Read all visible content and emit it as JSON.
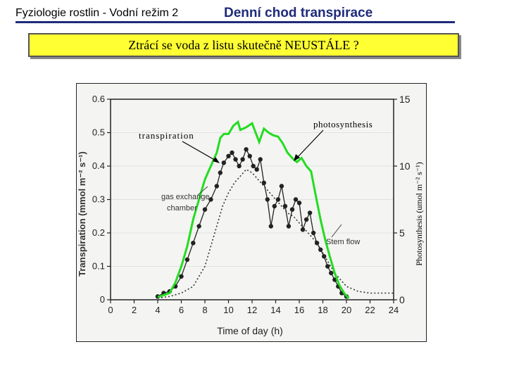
{
  "header": {
    "left_text": "Fyziologie rostlin  - Vodní režim 2",
    "title": "Denní chod transpirace"
  },
  "banner": {
    "text": "Ztrácí se voda z listu skutečně NEUSTÁLE ?"
  },
  "colors": {
    "accent_line": "#1f2a7a",
    "banner_bg": "#ffff33",
    "photosynthesis_curve": "#22dd22"
  },
  "chart_data": {
    "type": "line",
    "xlabel": "Time of day (h)",
    "ylabel": "Transpiration (mmol m⁻² s⁻¹)",
    "y2label": "Photosynthesis (umol m⁻² s⁻¹)",
    "xlim": [
      0,
      24
    ],
    "ylim": [
      0,
      0.6
    ],
    "y2lim": [
      0,
      15
    ],
    "x_ticks": [
      "0",
      "2",
      "4",
      "6",
      "8",
      "10",
      "12",
      "14",
      "16",
      "18",
      "20",
      "22",
      "24"
    ],
    "y_ticks": [
      "0",
      "0.1",
      "0.2",
      "0.3",
      "0.4",
      "0.5",
      "0.6"
    ],
    "y2_ticks": [
      "0",
      "5",
      "10",
      "15"
    ],
    "annotations": {
      "transpiration": "transpiration",
      "photosynthesis": "photosynthesis",
      "gas_exchange_1": "gas exchange",
      "gas_exchange_2": "chamber",
      "stem_flow": "Stem flow"
    },
    "series": [
      {
        "name": "transpiration",
        "x": [
          4,
          4.5,
          5,
          5.5,
          6,
          6.5,
          7,
          7.5,
          8,
          8.5,
          9,
          9.3,
          9.6,
          10,
          10.3,
          10.6,
          10.9,
          11.2,
          11.5,
          11.8,
          12.1,
          12.4,
          12.7,
          13,
          13.3,
          13.6,
          13.9,
          14.2,
          14.5,
          14.8,
          15.1,
          15.4,
          15.7,
          16,
          16.3,
          16.6,
          16.9,
          17.2,
          17.5,
          17.8,
          18.1,
          18.4,
          18.7,
          19,
          19.3,
          19.6,
          20
        ],
        "y": [
          0.01,
          0.02,
          0.025,
          0.04,
          0.07,
          0.12,
          0.17,
          0.22,
          0.27,
          0.3,
          0.34,
          0.38,
          0.41,
          0.43,
          0.44,
          0.42,
          0.4,
          0.42,
          0.45,
          0.43,
          0.4,
          0.39,
          0.42,
          0.35,
          0.3,
          0.22,
          0.28,
          0.3,
          0.34,
          0.28,
          0.22,
          0.27,
          0.3,
          0.29,
          0.21,
          0.24,
          0.26,
          0.2,
          0.17,
          0.15,
          0.13,
          0.1,
          0.08,
          0.06,
          0.04,
          0.02,
          0.01
        ]
      },
      {
        "name": "photosynthesis",
        "x": [
          4,
          5,
          5.5,
          6,
          6.5,
          7,
          7.5,
          8,
          8.5,
          9,
          9.3,
          9.6,
          10,
          10.4,
          10.8,
          11,
          11.5,
          12,
          12.3,
          12.6,
          13,
          13.4,
          13.8,
          14.2,
          14.6,
          15,
          15.4,
          15.8,
          16.2,
          16.6,
          17,
          17.4,
          17.8,
          18.2,
          18.6,
          19,
          19.4,
          19.8,
          20.2
        ],
        "y": [
          0.2,
          0.5,
          1.3,
          2.5,
          4,
          6,
          7.5,
          9,
          10,
          11,
          12.1,
          12.4,
          12.4,
          13,
          13.3,
          12.7,
          12.9,
          13.2,
          12.5,
          11.8,
          12.8,
          12.5,
          12.3,
          12.2,
          11.7,
          11,
          10.6,
          10.3,
          10.6,
          10,
          9.6,
          7.8,
          6,
          4.5,
          3.2,
          2,
          1.1,
          0.5,
          0.1
        ]
      },
      {
        "name": "Stem flow",
        "x": [
          4,
          5,
          6,
          7,
          7.5,
          8,
          8.5,
          9,
          9.5,
          10,
          10.5,
          11,
          11.5,
          12,
          12.5,
          13,
          13.5,
          14,
          14.5,
          15,
          15.5,
          16,
          16.5,
          17,
          17.5,
          18,
          18.5,
          19,
          19.5,
          20,
          21,
          22,
          23,
          24
        ],
        "y": [
          0.005,
          0.01,
          0.02,
          0.04,
          0.07,
          0.1,
          0.16,
          0.22,
          0.28,
          0.32,
          0.35,
          0.37,
          0.39,
          0.38,
          0.36,
          0.34,
          0.32,
          0.3,
          0.28,
          0.26,
          0.25,
          0.23,
          0.21,
          0.19,
          0.17,
          0.14,
          0.11,
          0.08,
          0.06,
          0.04,
          0.025,
          0.02,
          0.02,
          0.02
        ]
      }
    ]
  }
}
